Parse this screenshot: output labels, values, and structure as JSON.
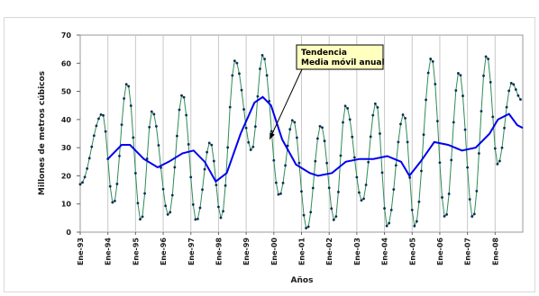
{
  "chart_data": {
    "type": "line",
    "ylabel": "Millones de metros cúbicos",
    "xlabel": "Años",
    "ylim": [
      0,
      70
    ],
    "yticks": [
      0,
      10,
      20,
      30,
      40,
      50,
      60,
      70
    ],
    "xlim": [
      1993,
      2009
    ],
    "xticks": [
      "Ene-93",
      "Ene-94",
      "Ene-95",
      "Ene-96",
      "Ene-97",
      "Ene-98",
      "Ene-99",
      "Ene-00",
      "Ene-01",
      "Ene-02",
      "Ene-03",
      "Ene-04",
      "Ene-05",
      "Ene-06",
      "Ene-07",
      "Ene-08"
    ],
    "grid": "vertical",
    "colors": {
      "monthly": "#2e8b57",
      "monthly_markers": "#0d2d52",
      "trend": "#0000ee",
      "plot_bg": "#ffffff"
    },
    "annotation": {
      "line1": "Tendencia",
      "line2": "Media móvil anual",
      "arrow_to": [
        1999.85,
        33
      ]
    },
    "series": [
      {
        "role": "monthly",
        "peaks": [
          {
            "x": 1993.8,
            "y": 42
          },
          {
            "x": 1994.7,
            "y": 53
          },
          {
            "x": 1995.6,
            "y": 43
          },
          {
            "x": 1996.7,
            "y": 49
          },
          {
            "x": 1997.7,
            "y": 32
          },
          {
            "x": 1998.6,
            "y": 61
          },
          {
            "x": 1999.6,
            "y": 63
          },
          {
            "x": 2000.7,
            "y": 40
          },
          {
            "x": 2001.7,
            "y": 38
          },
          {
            "x": 2002.6,
            "y": 45
          },
          {
            "x": 2003.7,
            "y": 46
          },
          {
            "x": 2004.7,
            "y": 42
          },
          {
            "x": 2005.7,
            "y": 62
          },
          {
            "x": 2006.7,
            "y": 57
          },
          {
            "x": 2007.7,
            "y": 63
          },
          {
            "x": 2008.6,
            "y": 53
          }
        ],
        "troughs": [
          {
            "x": 1993.0,
            "y": 17
          },
          {
            "x": 1994.2,
            "y": 10
          },
          {
            "x": 1995.2,
            "y": 4
          },
          {
            "x": 1996.2,
            "y": 6
          },
          {
            "x": 1997.2,
            "y": 4
          },
          {
            "x": 1998.1,
            "y": 5
          },
          {
            "x": 1999.2,
            "y": 29
          },
          {
            "x": 2000.2,
            "y": 13
          },
          {
            "x": 2001.2,
            "y": 1
          },
          {
            "x": 2002.2,
            "y": 4
          },
          {
            "x": 2003.2,
            "y": 11
          },
          {
            "x": 2004.1,
            "y": 2
          },
          {
            "x": 2005.1,
            "y": 2
          },
          {
            "x": 2006.2,
            "y": 5
          },
          {
            "x": 2007.2,
            "y": 5
          },
          {
            "x": 2008.1,
            "y": 24
          },
          {
            "x": 2008.95,
            "y": 47
          }
        ]
      },
      {
        "role": "trend",
        "x": [
          1994.0,
          1994.5,
          1994.8,
          1995.3,
          1995.8,
          1996.2,
          1996.7,
          1997.1,
          1997.5,
          1997.9,
          1998.3,
          1998.8,
          1999.3,
          1999.6,
          1999.9,
          2000.3,
          2000.8,
          2001.3,
          2001.6,
          2002.1,
          2002.6,
          2003.1,
          2003.6,
          2004.1,
          2004.6,
          2004.9,
          2005.3,
          2005.8,
          2006.3,
          2006.8,
          2007.3,
          2007.8,
          2008.1,
          2008.5,
          2008.8,
          2009.0
        ],
        "y": [
          26,
          31,
          31,
          26,
          23,
          25,
          28,
          29,
          25,
          18,
          21,
          35,
          46,
          48,
          45,
          33,
          24,
          21,
          20,
          21,
          25,
          26,
          26,
          27,
          25,
          20,
          25,
          32,
          31,
          29,
          30,
          35,
          40,
          42,
          38,
          37
        ]
      }
    ]
  }
}
